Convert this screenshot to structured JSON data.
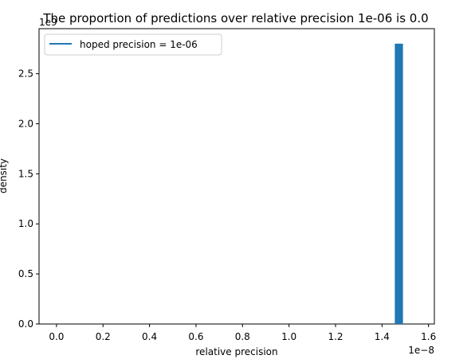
{
  "chart_data": {
    "type": "bar",
    "title": "The proportion of predictions over relative precision 1e-06 is 0.0",
    "xlabel": "relative precision",
    "ylabel": "density",
    "x_offset_label": "1e−8",
    "y_offset_label": "1e9",
    "xlim": [
      -0.075,
      1.625
    ],
    "ylim": [
      0,
      2.95
    ],
    "x_ticks": [
      0.0,
      0.2,
      0.4,
      0.6,
      0.8,
      1.0,
      1.2,
      1.4,
      1.6
    ],
    "x_tick_labels": [
      "0.0",
      "0.2",
      "0.4",
      "0.6",
      "0.8",
      "1.0",
      "1.2",
      "1.4",
      "1.6"
    ],
    "y_ticks": [
      0.0,
      0.5,
      1.0,
      1.5,
      2.0,
      2.5
    ],
    "y_tick_labels": [
      "0.0",
      "0.5",
      "1.0",
      "1.5",
      "2.0",
      "2.5"
    ],
    "bars": [
      {
        "x_start": 1.455,
        "x_end": 1.49,
        "value": 2.8
      }
    ],
    "legend": {
      "position": "top-left",
      "entries": [
        {
          "label": "hoped precision = 1e-06",
          "marker": "line",
          "color": "#1f77b4"
        }
      ]
    },
    "bar_color": "#1f77b4",
    "grid": false
  }
}
